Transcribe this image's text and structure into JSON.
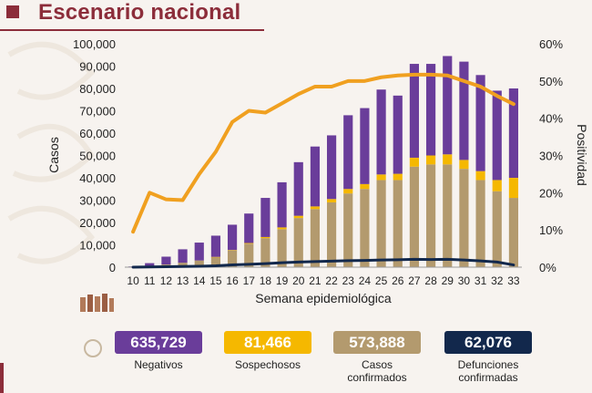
{
  "header": {
    "title": "Escenario nacional"
  },
  "colors": {
    "title": "#8c2d3a",
    "negativos": "#6a3d9a",
    "sospechosos": "#f5b800",
    "confirmados": "#b39a6e",
    "defunciones": "#12284c",
    "positividad": "#f0a020"
  },
  "chart_data": {
    "type": "bar",
    "stacked": true,
    "x": [
      10,
      11,
      12,
      13,
      14,
      15,
      16,
      17,
      18,
      19,
      20,
      21,
      22,
      23,
      24,
      25,
      26,
      27,
      28,
      29,
      30,
      31,
      32,
      33
    ],
    "xlabel": "Semana epidemiológica",
    "ylabel": "Casos",
    "y2label": "Positividad",
    "ylim": [
      0,
      100000
    ],
    "y2lim": [
      0,
      60
    ],
    "yticks": [
      "0",
      "10,000",
      "20,000",
      "30,000",
      "40,000",
      "50,000",
      "60,000",
      "70,000",
      "80,000",
      "90,000",
      "100,000"
    ],
    "y2ticks": [
      "0%",
      "10%",
      "20%",
      "30%",
      "40%",
      "50%",
      "60%"
    ],
    "series": [
      {
        "key": "confirmados",
        "values": [
          100,
          500,
          1200,
          2000,
          3000,
          4500,
          7500,
          10500,
          13000,
          17000,
          22000,
          26000,
          29000,
          33000,
          35000,
          39000,
          39000,
          45000,
          46000,
          46000,
          44000,
          39000,
          34000,
          31000
        ]
      },
      {
        "key": "sospechosos",
        "values": [
          0,
          0,
          0,
          0,
          0,
          100,
          200,
          300,
          500,
          800,
          1000,
          1200,
          1500,
          2000,
          2200,
          2500,
          2800,
          4000,
          4000,
          4500,
          4000,
          4000,
          5000,
          9000
        ]
      },
      {
        "key": "negativos",
        "values": [
          200,
          1300,
          3500,
          6000,
          8000,
          9500,
          11300,
          13200,
          17500,
          20200,
          24000,
          26800,
          28500,
          33000,
          34000,
          38000,
          35000,
          42000,
          41000,
          44000,
          44000,
          43000,
          40000,
          40000
        ]
      }
    ],
    "lines": [
      {
        "key": "positividad",
        "axis": "right",
        "values": [
          9.5,
          20,
          18.2,
          18,
          25,
          31,
          39,
          42,
          41.5,
          44,
          46.5,
          48.5,
          48.5,
          50,
          50,
          51,
          51.5,
          51.7,
          51.7,
          51.5,
          50,
          48.5,
          46,
          43.8
        ]
      },
      {
        "key": "defunciones",
        "axis": "left",
        "values": [
          0,
          100,
          200,
          300,
          400,
          600,
          1000,
          1300,
          1600,
          2000,
          2300,
          2500,
          2700,
          2900,
          3000,
          3200,
          3300,
          3500,
          3400,
          3500,
          3200,
          2800,
          2300,
          1000
        ]
      }
    ]
  },
  "summary": {
    "negativos": {
      "value": "635,729",
      "label": "Negativos"
    },
    "sospechosos": {
      "value": "81,466",
      "label": "Sospechosos"
    },
    "confirmados": {
      "value": "573,888",
      "label_line1": "Casos",
      "label_line2": "confirmados"
    },
    "defunciones": {
      "value": "62,076",
      "label_line1": "Defunciones",
      "label_line2": "confirmadas"
    }
  }
}
